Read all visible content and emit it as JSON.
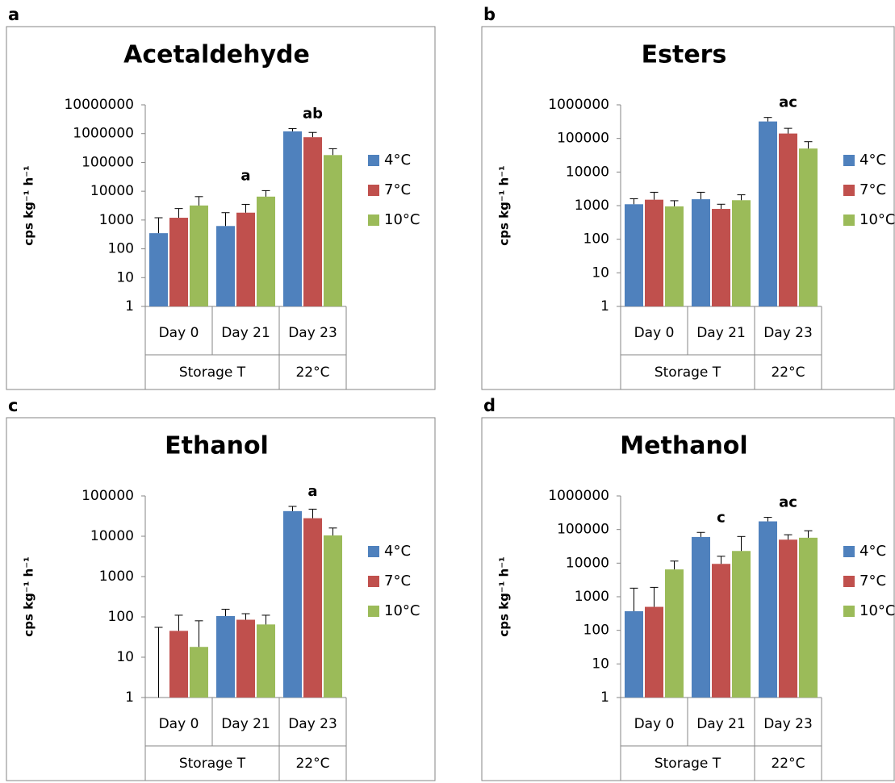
{
  "chart_data": [
    {
      "type": "bar",
      "panel": "a",
      "title": "Acetaldehyde",
      "y_label": "cps kg⁻¹ h⁻¹",
      "log_scale": true,
      "legend": "right",
      "categories": [
        "Day 0",
        "Day 21",
        "Day 23"
      ],
      "category_groups": [
        "Storage T",
        "Storage T",
        "22°C"
      ],
      "annotations": [
        null,
        "a",
        "ab"
      ],
      "ylim": [
        1,
        10000000
      ],
      "yticks": [
        1,
        10,
        100,
        1000,
        10000,
        100000,
        1000000,
        10000000
      ],
      "series": [
        {
          "name": "4°C",
          "color": "#4f81bd",
          "values": [
            350,
            620,
            1200000
          ],
          "errors": [
            850,
            1180,
            300000
          ]
        },
        {
          "name": "7°C",
          "color": "#c0504d",
          "values": [
            1200,
            1800,
            750000
          ],
          "errors": [
            1300,
            1700,
            350000
          ]
        },
        {
          "name": "10°C",
          "color": "#9bbb59",
          "values": [
            3200,
            6500,
            180000
          ],
          "errors": [
            3300,
            4000,
            120000
          ]
        }
      ]
    },
    {
      "type": "bar",
      "panel": "b",
      "title": "Esters",
      "y_label": "cps kg⁻¹ h⁻¹",
      "log_scale": true,
      "legend": "right",
      "categories": [
        "Day 0",
        "Day 21",
        "Day 23"
      ],
      "category_groups": [
        "Storage T",
        "Storage T",
        "22°C"
      ],
      "annotations": [
        null,
        null,
        "ac"
      ],
      "ylim": [
        1,
        1000000
      ],
      "yticks": [
        1,
        10,
        100,
        1000,
        10000,
        100000,
        1000000
      ],
      "series": [
        {
          "name": "4°C",
          "color": "#4f81bd",
          "values": [
            1100,
            1550,
            320000
          ],
          "errors": [
            500,
            950,
            100000
          ]
        },
        {
          "name": "7°C",
          "color": "#c0504d",
          "values": [
            1500,
            800,
            140000
          ],
          "errors": [
            1000,
            300,
            60000
          ]
        },
        {
          "name": "10°C",
          "color": "#9bbb59",
          "values": [
            950,
            1450,
            50000
          ],
          "errors": [
            450,
            650,
            30000
          ]
        }
      ]
    },
    {
      "type": "bar",
      "panel": "c",
      "title": "Ethanol",
      "y_label": "cps kg⁻¹ h⁻¹",
      "log_scale": true,
      "legend": "right",
      "categories": [
        "Day 0",
        "Day 21",
        "Day 23"
      ],
      "category_groups": [
        "Storage T",
        "Storage T",
        "22°C"
      ],
      "annotations": [
        null,
        null,
        "a"
      ],
      "ylim": [
        1,
        100000
      ],
      "yticks": [
        1,
        10,
        100,
        1000,
        10000,
        100000
      ],
      "series": [
        {
          "name": "4°C",
          "color": "#4f81bd",
          "values": [
            1,
            105,
            42000
          ],
          "errors": [
            54,
            50,
            13000
          ]
        },
        {
          "name": "7°C",
          "color": "#c0504d",
          "values": [
            45,
            85,
            28000
          ],
          "errors": [
            65,
            35,
            19000
          ]
        },
        {
          "name": "10°C",
          "color": "#9bbb59",
          "values": [
            18,
            65,
            10500
          ],
          "errors": [
            62,
            45,
            5500
          ]
        }
      ]
    },
    {
      "type": "bar",
      "panel": "d",
      "title": "Methanol",
      "y_label": "cps kg⁻¹ h⁻¹",
      "log_scale": true,
      "legend": "right",
      "categories": [
        "Day 0",
        "Day 21",
        "Day 23"
      ],
      "category_groups": [
        "Storage T",
        "Storage T",
        "22°C"
      ],
      "annotations": [
        null,
        "c",
        "ac"
      ],
      "ylim": [
        1,
        1000000
      ],
      "yticks": [
        1,
        10,
        100,
        1000,
        10000,
        100000,
        1000000
      ],
      "series": [
        {
          "name": "4°C",
          "color": "#4f81bd",
          "values": [
            370,
            60000,
            175000
          ],
          "errors": [
            1430,
            22000,
            55000
          ]
        },
        {
          "name": "7°C",
          "color": "#c0504d",
          "values": [
            500,
            9500,
            50000
          ],
          "errors": [
            1400,
            6500,
            20000
          ]
        },
        {
          "name": "10°C",
          "color": "#9bbb59",
          "values": [
            6500,
            23000,
            57000
          ],
          "errors": [
            5000,
            39000,
            35000
          ]
        }
      ]
    }
  ]
}
